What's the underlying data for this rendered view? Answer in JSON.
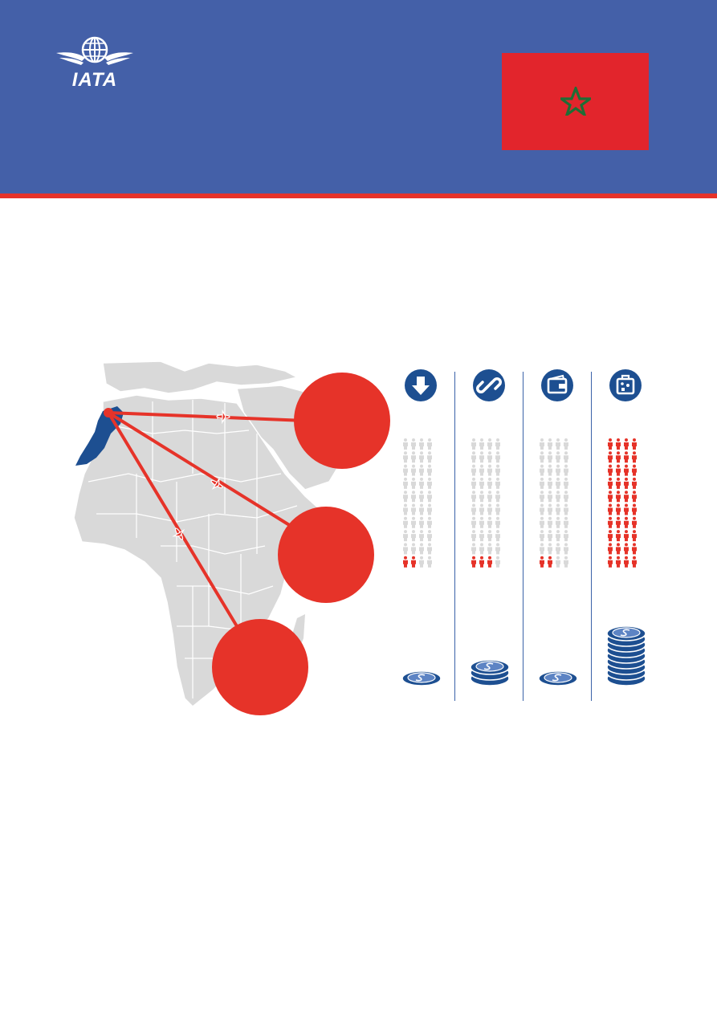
{
  "header": {
    "logo_text": "IATA",
    "background_color": "#4460a8",
    "stripe_color": "#e63329"
  },
  "flag": {
    "country": "Morocco",
    "field_color": "#e2252c",
    "star_color": "#1f6d35"
  },
  "map": {
    "highlight_color": "#1d4f91",
    "route_color": "#e63329",
    "land_color": "#d9d9d9",
    "icons": [
      "plane-icon",
      "plane-icon",
      "plane-icon"
    ]
  },
  "columns": [
    {
      "icon": "arrow-down-icon",
      "people_red": 2,
      "people_total": 40,
      "coin_stack": 1
    },
    {
      "icon": "link-icon",
      "people_red": 3,
      "people_total": 40,
      "coin_stack": 3
    },
    {
      "icon": "wallet-icon",
      "people_red": 2,
      "people_total": 40,
      "coin_stack": 1
    },
    {
      "icon": "luggage-icon",
      "people_red": 40,
      "people_total": 40,
      "coin_stack": 9
    }
  ],
  "colors": {
    "accent_red": "#e63329",
    "navy": "#1d4f91",
    "person_grey": "#d9d9d9"
  }
}
